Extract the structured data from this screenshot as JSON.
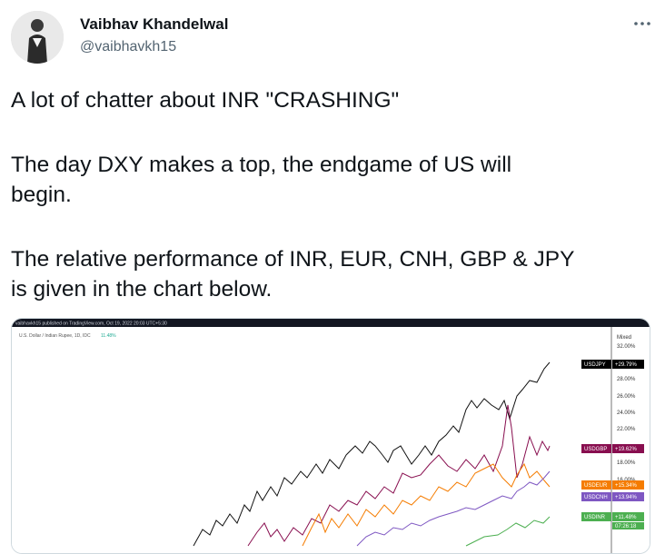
{
  "user": {
    "name": "Vaibhav Khandelwal",
    "handle": "@vaibhavkh15"
  },
  "tweet": {
    "paragraphs": [
      [
        "A lot of chatter about INR \"CRASHING\""
      ],
      [
        "The day DXY makes a top, the endgame of US will",
        "begin."
      ],
      [
        "The relative performance of INR, EUR, CNH, GBP & JPY",
        "is given in the chart below."
      ]
    ]
  },
  "chart_image": {
    "header": "vaibhavkh15 published on TradingView.com, Oct 19, 2022 20:03 UTC+5:30",
    "symbol": "U.S. Dollar / Indian Rupee, 1D, IDC",
    "change": "11.48%",
    "scale_mode": "Mixed",
    "axis_labels": [
      "32.00%",
      "28.00%",
      "26.00%",
      "24.00%",
      "22.00%",
      "18.00%",
      "16.00%"
    ],
    "tags": [
      {
        "symbol": "USDJPY",
        "change": "+29.79%",
        "color": "#000000"
      },
      {
        "symbol": "USDGBP",
        "change": "+19.62%",
        "color": "#880e4f"
      },
      {
        "symbol": "USDEUR",
        "change": "+15.34%",
        "color": "#f57c00"
      },
      {
        "symbol": "USDCNH",
        "change": "+13.94%",
        "color": "#7e57c2"
      },
      {
        "symbol": "USDINR",
        "change": "+11.48%",
        "color": "#4caf50"
      }
    ],
    "countdown": "07:26:18"
  }
}
